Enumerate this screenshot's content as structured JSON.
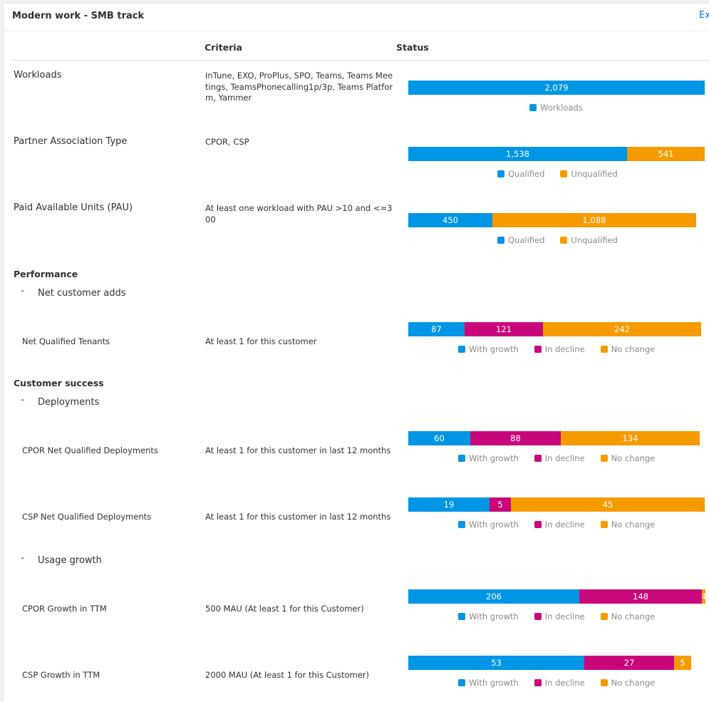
{
  "card": {
    "title": "Modern work - SMB track",
    "export_label": "Ex"
  },
  "columns": {
    "criteria": "Criteria",
    "status": "Status"
  },
  "colors": {
    "blue": "#0095e5",
    "orange": "#f59b00",
    "magenta": "#c8087a"
  },
  "legends": {
    "workloads": "Workloads",
    "qualified": "Qualified",
    "unqualified": "Unqualified",
    "with_growth": "With growth",
    "in_decline": "In decline",
    "no_change": "No change"
  },
  "rows": {
    "workloads": {
      "label": "Workloads",
      "criteria": "InTune, EXO, ProPlus, SPO, Teams, Teams Meetings, TeamsPhonecalling1p/3p, Teams Platform, Yammer",
      "values": [
        "2,079"
      ]
    },
    "partner": {
      "label": "Partner Association Type",
      "criteria": "CPOR, CSP",
      "values": [
        "1,538",
        "541"
      ]
    },
    "pau": {
      "label": "Paid Available Units (PAU)",
      "criteria": "At least one workload with PAU >10 and <=300",
      "values": [
        "450",
        "1,088"
      ]
    },
    "net_tenants": {
      "label": "Net Qualified Tenants",
      "criteria": "At least 1 for this customer",
      "values": [
        "87",
        "121",
        "242"
      ]
    },
    "cpor_deploy": {
      "label": "CPOR Net Qualified Deployments",
      "criteria": "At least 1 for this customer in last 12 months",
      "values": [
        "60",
        "88",
        "134"
      ]
    },
    "csp_deploy": {
      "label": "CSP Net Qualified Deployments",
      "criteria": "At least 1 for this customer in last 12 months",
      "values": [
        "19",
        "5",
        "45"
      ]
    },
    "cpor_growth": {
      "label": "CPOR Growth in TTM",
      "criteria": "500 MAU (At least 1 for this Customer)",
      "values": [
        "206",
        "148",
        "4"
      ]
    },
    "csp_growth": {
      "label": "CSP Growth in TTM",
      "criteria": "2000 MAU (At least 1 for this Customer)",
      "values": [
        "53",
        "27",
        "5"
      ]
    }
  },
  "sections": {
    "performance": "Performance",
    "net_customer_adds": "Net customer adds",
    "customer_success": "Customer success",
    "deployments": "Deployments",
    "usage_growth": "Usage growth"
  },
  "chevron_up": "⌃"
}
